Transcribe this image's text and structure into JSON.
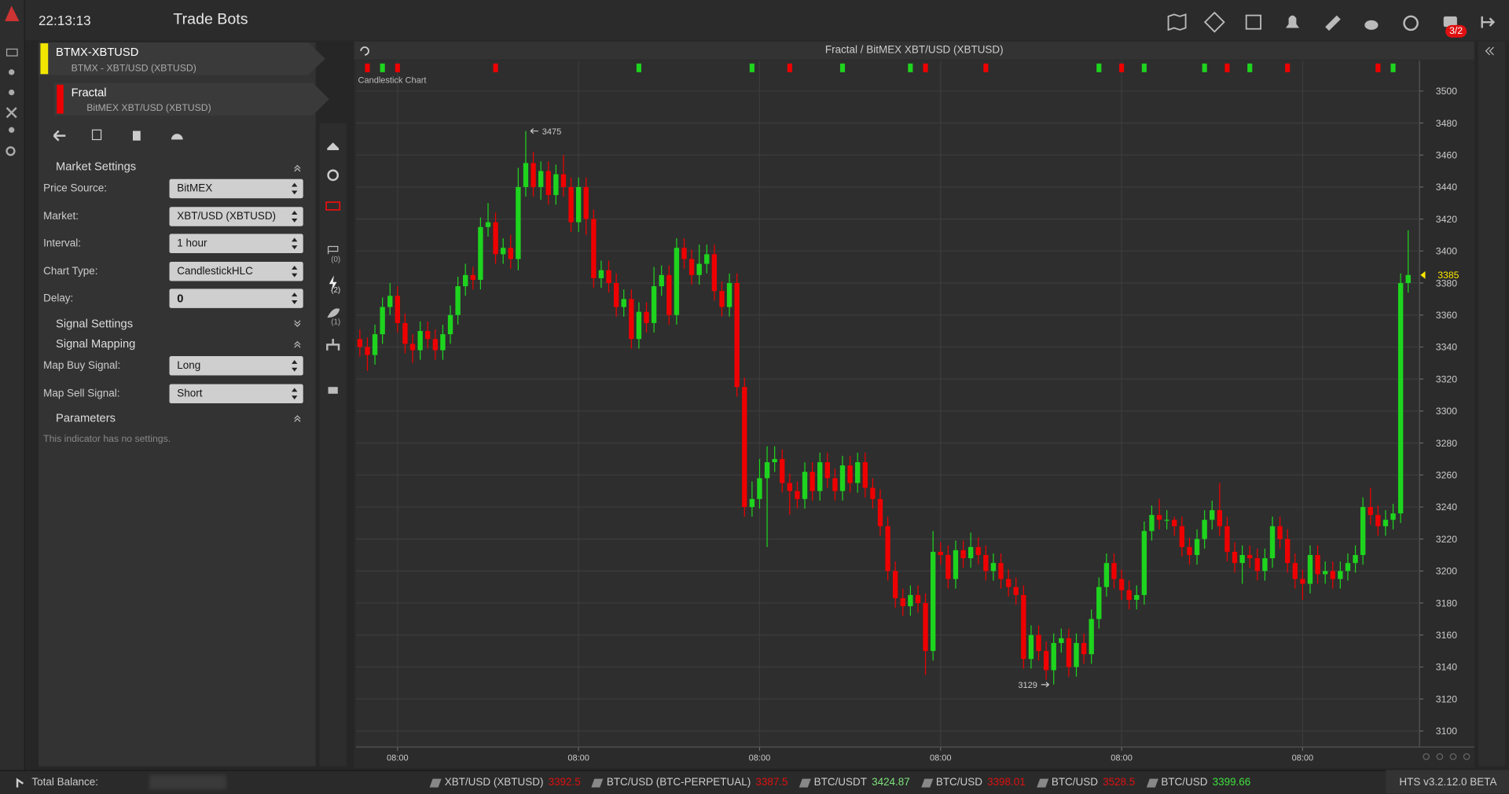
{
  "header": {
    "clock": "22:13:13",
    "title": "Trade Bots",
    "alert_badge": "3/2"
  },
  "bot": {
    "name": "BTMX-XBTUSD",
    "market": "BTMX - XBT/USD (XBTUSD)"
  },
  "indicator": {
    "name": "Fractal",
    "market": "BitMEX XBT/USD (XBTUSD)"
  },
  "market_settings": {
    "heading": "Market Settings",
    "fields": [
      {
        "label": "Price Source:",
        "value": "BitMEX"
      },
      {
        "label": "Market:",
        "value": "XBT/USD (XBTUSD)"
      },
      {
        "label": "Interval:",
        "value": "1 hour"
      },
      {
        "label": "Chart Type:",
        "value": "CandlestickHLC"
      },
      {
        "label": "Delay:",
        "value": 0
      }
    ]
  },
  "signal_settings": {
    "heading": "Signal Settings"
  },
  "signal_mapping": {
    "heading": "Signal Mapping",
    "fields": [
      {
        "label": "Map Buy Signal:",
        "value": "Long"
      },
      {
        "label": "Map Sell Signal:",
        "value": "Short"
      }
    ]
  },
  "parameters": {
    "heading": "Parameters",
    "note": "This indicator has no settings."
  },
  "toolbar_counts": [
    "(0)",
    "(2)",
    "(1)"
  ],
  "chart_panel": {
    "title": "Fractal / BitMEX XBT/USD (XBTUSD)"
  },
  "chart_data": {
    "type": "candlestick",
    "title": "Candlestick Chart",
    "up_color": "#1ed41e",
    "down_color": "#ee0000",
    "grid": true,
    "ylim": [
      3090,
      3519
    ],
    "yticks": [
      3100,
      3120,
      3140,
      3160,
      3180,
      3200,
      3220,
      3240,
      3260,
      3280,
      3300,
      3320,
      3340,
      3360,
      3380,
      3400,
      3420,
      3440,
      3460,
      3480,
      3500
    ],
    "xlim": [
      -0.5,
      140.5
    ],
    "xticks": [
      {
        "value": 5,
        "label": "08:00"
      },
      {
        "value": 29,
        "label": "08:00"
      },
      {
        "value": 53,
        "label": "08:00"
      },
      {
        "value": 77,
        "label": "08:00"
      },
      {
        "value": 101,
        "label": "08:00"
      },
      {
        "value": 125,
        "label": "08:00"
      }
    ],
    "opens": [
      3345,
      3340,
      3335,
      3348,
      3365,
      3372,
      3355,
      3342,
      3338,
      3350,
      3345,
      3338,
      3348,
      3360,
      3378,
      3385,
      3382,
      3415,
      3418,
      3398,
      3402,
      3395,
      3440,
      3455,
      3440,
      3450,
      3435,
      3448,
      3440,
      3418,
      3440,
      3420,
      3383,
      3388,
      3380,
      3365,
      3370,
      3345,
      3362,
      3355,
      3378,
      3385,
      3360,
      3402,
      3395,
      3385,
      3392,
      3398,
      3375,
      3365,
      3380,
      3315,
      3240,
      3245,
      3258,
      3268,
      3270,
      3255,
      3250,
      3245,
      3262,
      3250,
      3268,
      3258,
      3250,
      3266,
      3255,
      3268,
      3252,
      3245,
      3228,
      3200,
      3183,
      3178,
      3185,
      3180,
      3150,
      3212,
      3210,
      3195,
      3213,
      3208,
      3215,
      3210,
      3200,
      3205,
      3195,
      3190,
      3185,
      3145,
      3160,
      3150,
      3138,
      3155,
      3158,
      3140,
      3155,
      3148,
      3170,
      3190,
      3205,
      3195,
      3188,
      3182,
      3185,
      3225,
      3235,
      3232,
      3232,
      3228,
      3215,
      3210,
      3220,
      3232,
      3238,
      3228,
      3212,
      3205,
      3210,
      3208,
      3200,
      3208,
      3228,
      3220,
      3205,
      3195,
      3192,
      3210,
      3198,
      3200,
      3195,
      3200,
      3205,
      3210,
      3240,
      3235,
      3228,
      3232,
      3236,
      3380
    ],
    "highs": [
      3351,
      3346,
      3354,
      3371,
      3380,
      3378,
      3361,
      3348,
      3356,
      3356,
      3351,
      3354,
      3366,
      3384,
      3392,
      3390,
      3421,
      3430,
      3424,
      3408,
      3410,
      3452,
      3475,
      3462,
      3456,
      3456,
      3454,
      3460,
      3446,
      3446,
      3446,
      3426,
      3394,
      3394,
      3386,
      3376,
      3376,
      3368,
      3368,
      3390,
      3391,
      3391,
      3408,
      3408,
      3401,
      3404,
      3404,
      3404,
      3381,
      3386,
      3386,
      3321,
      3256,
      3270,
      3278,
      3278,
      3276,
      3261,
      3256,
      3268,
      3268,
      3274,
      3274,
      3264,
      3272,
      3272,
      3274,
      3274,
      3258,
      3251,
      3234,
      3206,
      3189,
      3191,
      3191,
      3186,
      3225,
      3218,
      3216,
      3219,
      3219,
      3224,
      3221,
      3216,
      3211,
      3211,
      3201,
      3196,
      3191,
      3166,
      3166,
      3156,
      3161,
      3164,
      3164,
      3161,
      3161,
      3176,
      3196,
      3211,
      3211,
      3201,
      3194,
      3191,
      3231,
      3241,
      3245,
      3238,
      3234,
      3234,
      3221,
      3226,
      3238,
      3244,
      3255,
      3234,
      3218,
      3216,
      3216,
      3214,
      3214,
      3234,
      3234,
      3226,
      3211,
      3201,
      3216,
      3216,
      3206,
      3206,
      3206,
      3211,
      3216,
      3246,
      3252,
      3241,
      3238,
      3242,
      3386,
      3413
    ],
    "lows": [
      3334,
      3325,
      3329,
      3342,
      3360,
      3349,
      3336,
      3330,
      3332,
      3339,
      3332,
      3332,
      3342,
      3354,
      3372,
      3376,
      3376,
      3409,
      3392,
      3392,
      3389,
      3388,
      3434,
      3434,
      3432,
      3429,
      3429,
      3434,
      3412,
      3412,
      3410,
      3377,
      3377,
      3374,
      3359,
      3359,
      3339,
      3339,
      3349,
      3349,
      3372,
      3354,
      3354,
      3389,
      3379,
      3379,
      3386,
      3369,
      3359,
      3359,
      3309,
      3234,
      3234,
      3239,
      3215,
      3262,
      3249,
      3235,
      3239,
      3239,
      3244,
      3244,
      3252,
      3244,
      3244,
      3249,
      3249,
      3246,
      3239,
      3222,
      3194,
      3177,
      3172,
      3172,
      3174,
      3135,
      3144,
      3204,
      3189,
      3189,
      3202,
      3202,
      3204,
      3194,
      3194,
      3189,
      3184,
      3179,
      3139,
      3139,
      3144,
      3132,
      3129,
      3149,
      3134,
      3134,
      3142,
      3142,
      3164,
      3184,
      3189,
      3182,
      3176,
      3176,
      3179,
      3219,
      3226,
      3226,
      3222,
      3209,
      3204,
      3204,
      3214,
      3226,
      3222,
      3206,
      3199,
      3192,
      3202,
      3194,
      3194,
      3202,
      3214,
      3199,
      3189,
      3182,
      3186,
      3192,
      3192,
      3189,
      3189,
      3194,
      3199,
      3204,
      3229,
      3222,
      3222,
      3226,
      3230,
      3374
    ],
    "closes": [
      3340,
      3335,
      3348,
      3365,
      3372,
      3355,
      3342,
      3338,
      3350,
      3345,
      3338,
      3348,
      3360,
      3378,
      3385,
      3382,
      3415,
      3418,
      3398,
      3402,
      3395,
      3440,
      3455,
      3440,
      3450,
      3435,
      3448,
      3440,
      3418,
      3440,
      3420,
      3383,
      3388,
      3380,
      3365,
      3370,
      3345,
      3362,
      3355,
      3378,
      3385,
      3360,
      3402,
      3395,
      3385,
      3392,
      3398,
      3375,
      3365,
      3380,
      3315,
      3240,
      3245,
      3258,
      3268,
      3270,
      3255,
      3250,
      3245,
      3262,
      3250,
      3268,
      3258,
      3250,
      3266,
      3255,
      3268,
      3252,
      3245,
      3228,
      3200,
      3183,
      3178,
      3185,
      3180,
      3150,
      3212,
      3210,
      3195,
      3213,
      3208,
      3215,
      3210,
      3200,
      3205,
      3195,
      3190,
      3185,
      3145,
      3160,
      3150,
      3138,
      3155,
      3158,
      3140,
      3155,
      3148,
      3170,
      3190,
      3205,
      3195,
      3188,
      3182,
      3185,
      3225,
      3235,
      3232,
      3232,
      3228,
      3215,
      3210,
      3220,
      3232,
      3238,
      3228,
      3212,
      3205,
      3210,
      3208,
      3200,
      3208,
      3228,
      3220,
      3205,
      3195,
      3192,
      3210,
      3198,
      3200,
      3195,
      3200,
      3205,
      3210,
      3240,
      3235,
      3228,
      3232,
      3236,
      3380,
      3385
    ],
    "buy_signals": [
      3,
      37,
      52,
      64,
      73,
      98,
      104,
      112,
      118,
      137
    ],
    "sell_signals": [
      1,
      5,
      18,
      57,
      75,
      83,
      101,
      115,
      123,
      135
    ],
    "last_price_color": "#ffe600"
  },
  "footer": {
    "balance_label": "Total Balance:",
    "version": "HTS v3.2.12.0 BETA",
    "tickers": [
      {
        "pair": "XBT/USD (XBTUSD)",
        "price": 3392.5,
        "color": "#e01010"
      },
      {
        "pair": "BTC/USD (BTC-PERPETUAL)",
        "price": 3387.5,
        "color": "#e01010"
      },
      {
        "pair": "BTC/USDT",
        "price": 3424.87,
        "color": "#7de07d"
      },
      {
        "pair": "BTC/USD",
        "price": 3398.01,
        "color": "#e01010"
      },
      {
        "pair": "BTC/USD",
        "price": 3528.5,
        "color": "#e01010"
      },
      {
        "pair": "BTC/USD",
        "price": 3399.66,
        "color": "#3ee03e"
      }
    ]
  }
}
